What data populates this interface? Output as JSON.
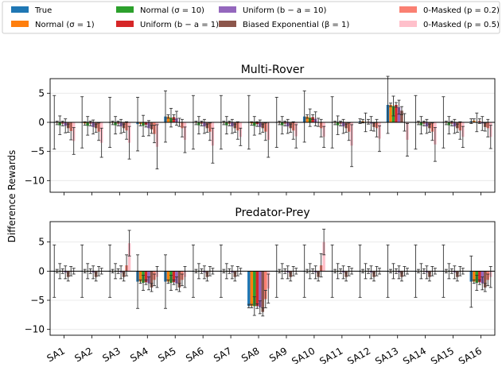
{
  "chart_data": [
    {
      "type": "bar",
      "title": "Multi-Rover",
      "ylabel": "Difference Rewards",
      "ylim": [
        -12,
        7.5
      ],
      "yticks": [
        5,
        0,
        -5,
        -10
      ],
      "categories": [
        "SA1",
        "SA2",
        "SA3",
        "SA4",
        "SA5",
        "SA6",
        "SA7",
        "SA8",
        "SA9",
        "SA10",
        "SA11",
        "SA12",
        "SA13",
        "SA14",
        "SA15",
        "SA16"
      ],
      "series": [
        {
          "name": "True",
          "color": "#1f77b4",
          "values": [
            0.0,
            0.0,
            0.0,
            -0.3,
            1.0,
            0.0,
            0.0,
            0.0,
            0.0,
            1.0,
            0.0,
            0.2,
            3.0,
            0.0,
            0.0,
            0.2
          ],
          "err": [
            4.6,
            4.4,
            4.3,
            4.6,
            4.4,
            4.6,
            4.6,
            4.6,
            4.3,
            4.4,
            4.4,
            0.4,
            4.9,
            4.6,
            4.4,
            0.4
          ]
        },
        {
          "name": "Normal (σ=1)",
          "color": "#ff7f0e",
          "values": [
            -0.1,
            -0.2,
            -0.1,
            -0.3,
            1.0,
            -0.1,
            -0.1,
            -0.2,
            -0.1,
            1.0,
            -0.1,
            0.2,
            3.0,
            -0.1,
            -0.1,
            0.3
          ],
          "err": [
            0.3,
            0.3,
            0.3,
            0.3,
            0.3,
            0.3,
            0.3,
            0.3,
            0.3,
            0.3,
            0.3,
            0.3,
            0.3,
            0.3,
            0.3,
            0.3
          ]
        },
        {
          "name": "Normal (σ=10)",
          "color": "#2ca02c",
          "values": [
            -0.5,
            -0.6,
            -0.5,
            -0.6,
            0.8,
            -0.5,
            -0.5,
            -0.6,
            -0.5,
            0.8,
            -0.5,
            0.0,
            2.8,
            -0.5,
            -0.5,
            0.0
          ],
          "err": [
            1.6,
            1.6,
            1.5,
            1.8,
            1.6,
            1.5,
            1.5,
            1.6,
            1.5,
            1.5,
            1.6,
            1.6,
            1.7,
            1.5,
            1.5,
            1.6
          ]
        },
        {
          "name": "Uniform (b−a=1)",
          "color": "#d62728",
          "values": [
            -0.2,
            -0.2,
            -0.2,
            -0.4,
            0.9,
            -0.2,
            -0.2,
            -0.3,
            -0.2,
            0.9,
            -0.2,
            0.1,
            3.0,
            -0.2,
            -0.2,
            0.2
          ],
          "err": [
            0.4,
            0.4,
            0.4,
            0.4,
            0.4,
            0.4,
            0.4,
            0.4,
            0.4,
            0.4,
            0.4,
            0.4,
            0.4,
            0.4,
            0.4,
            0.4
          ]
        },
        {
          "name": "Uniform (b−a=10)",
          "color": "#9467bd",
          "values": [
            -0.6,
            -0.8,
            -0.7,
            -1.0,
            0.7,
            -0.7,
            -0.7,
            -0.8,
            -0.7,
            0.6,
            -0.7,
            -0.2,
            2.6,
            -0.7,
            -0.7,
            -0.2
          ],
          "err": [
            1.2,
            1.2,
            1.2,
            1.3,
            1.2,
            1.2,
            1.2,
            1.2,
            1.2,
            1.2,
            1.2,
            1.2,
            1.2,
            1.2,
            1.2,
            1.2
          ]
        },
        {
          "name": "Biased Exponential (β=1)",
          "color": "#8c564b",
          "values": [
            -1.0,
            -1.0,
            -1.0,
            -1.2,
            0.0,
            -1.0,
            -1.0,
            -1.0,
            -1.0,
            0.0,
            -1.0,
            -0.8,
            2.0,
            -1.0,
            -1.0,
            -0.8
          ],
          "err": [
            0.7,
            0.7,
            0.7,
            0.7,
            0.7,
            0.7,
            0.7,
            0.7,
            0.7,
            0.7,
            0.7,
            0.7,
            0.7,
            0.7,
            0.7,
            0.7
          ]
        },
        {
          "name": "0-Masked (p=0.2)",
          "color": "#fa8072",
          "values": [
            -1.5,
            -1.6,
            -1.4,
            -2.0,
            -1.0,
            -1.6,
            -1.4,
            -1.6,
            -1.4,
            -1.0,
            -1.6,
            -1.0,
            0.0,
            -1.6,
            -1.4,
            -1.0
          ],
          "err": [
            1.5,
            1.5,
            1.5,
            1.5,
            1.5,
            1.5,
            1.5,
            1.5,
            1.5,
            1.5,
            1.5,
            1.5,
            1.5,
            1.5,
            1.5,
            1.5
          ]
        },
        {
          "name": "0-Masked (p=0.5)",
          "color": "#ffc0cb",
          "values": [
            -3.2,
            -3.5,
            -3.5,
            -4.2,
            -3.0,
            -4.0,
            -2.5,
            -3.0,
            -2.4,
            -2.5,
            -4.0,
            -2.8,
            -3.0,
            -3.8,
            -2.5,
            -2.5
          ],
          "err": [
            2.3,
            2.5,
            2.8,
            3.8,
            2.2,
            3.0,
            1.5,
            3.0,
            2.0,
            1.8,
            3.6,
            2.2,
            2.8,
            2.9,
            1.8,
            2.0
          ]
        }
      ]
    },
    {
      "type": "bar",
      "title": "Predator-Prey",
      "ylabel": "Difference Rewards",
      "ylim": [
        -11,
        8.5
      ],
      "yticks": [
        5,
        0,
        -5,
        -10
      ],
      "categories": [
        "SA1",
        "SA2",
        "SA3",
        "SA4",
        "SA5",
        "SA6",
        "SA7",
        "SA8",
        "SA9",
        "SA10",
        "SA11",
        "SA12",
        "SA13",
        "SA14",
        "SA15",
        "SA16"
      ],
      "series": [
        {
          "name": "True",
          "color": "#1f77b4",
          "values": [
            0.0,
            0.0,
            0.0,
            -1.8,
            -1.8,
            0.0,
            0.0,
            -6.0,
            0.0,
            0.0,
            0.0,
            0.0,
            0.0,
            0.0,
            0.0,
            -1.8
          ],
          "err": [
            4.5,
            4.5,
            4.5,
            4.6,
            4.6,
            4.5,
            4.5,
            0.3,
            4.5,
            4.5,
            4.5,
            4.5,
            4.5,
            4.5,
            4.5,
            4.4
          ]
        },
        {
          "name": "Normal (σ=1)",
          "color": "#ff7f0e",
          "values": [
            0.0,
            0.0,
            0.0,
            -1.8,
            -1.8,
            0.0,
            0.0,
            -6.0,
            0.0,
            0.0,
            0.0,
            0.0,
            0.0,
            0.0,
            0.0,
            -1.8
          ],
          "err": [
            0.3,
            0.3,
            0.3,
            0.3,
            0.3,
            0.3,
            0.3,
            0.3,
            0.3,
            0.3,
            0.3,
            0.3,
            0.3,
            0.3,
            0.3,
            0.3
          ]
        },
        {
          "name": "Normal (σ=10)",
          "color": "#2ca02c",
          "values": [
            0.0,
            0.0,
            0.0,
            -2.0,
            -2.0,
            0.0,
            0.0,
            -6.0,
            0.0,
            0.0,
            0.0,
            0.0,
            0.0,
            0.0,
            0.0,
            -2.0
          ],
          "err": [
            1.3,
            1.3,
            1.3,
            1.3,
            1.3,
            1.3,
            1.3,
            1.6,
            1.3,
            1.3,
            1.3,
            1.3,
            1.3,
            1.3,
            1.3,
            1.3
          ]
        },
        {
          "name": "Uniform (b−a=1)",
          "color": "#d62728",
          "values": [
            0.0,
            0.0,
            0.0,
            -1.9,
            -1.9,
            0.0,
            0.0,
            -6.0,
            0.0,
            0.0,
            0.0,
            0.0,
            0.0,
            0.0,
            0.0,
            -1.9
          ],
          "err": [
            0.4,
            0.4,
            0.4,
            0.4,
            0.4,
            0.4,
            0.4,
            0.4,
            0.4,
            0.4,
            0.4,
            0.4,
            0.4,
            0.4,
            0.4,
            0.4
          ]
        },
        {
          "name": "Uniform (b−a=10)",
          "color": "#9467bd",
          "values": [
            -0.2,
            -0.2,
            -0.2,
            -2.1,
            -2.1,
            -0.2,
            -0.2,
            -6.2,
            -0.2,
            -0.2,
            -0.2,
            -0.2,
            -0.2,
            -0.2,
            -0.2,
            -2.1
          ],
          "err": [
            1.1,
            1.1,
            1.1,
            1.1,
            1.1,
            1.1,
            1.1,
            1.1,
            1.1,
            1.1,
            1.1,
            1.1,
            1.1,
            1.1,
            1.1,
            1.1
          ]
        },
        {
          "name": "Biased Exponential (β=1)",
          "color": "#8c564b",
          "values": [
            -1.0,
            -1.0,
            -1.0,
            -2.8,
            -2.8,
            -1.0,
            -1.0,
            -7.0,
            -1.0,
            -1.0,
            -1.0,
            -1.0,
            -1.0,
            -1.0,
            -1.0,
            -2.8
          ],
          "err": [
            0.7,
            0.7,
            0.7,
            0.7,
            0.7,
            0.7,
            0.7,
            0.7,
            0.7,
            0.7,
            0.7,
            0.7,
            0.7,
            0.7,
            0.7,
            0.7
          ]
        },
        {
          "name": "0-Masked (p=0.2)",
          "color": "#fa8072",
          "values": [
            0.0,
            0.0,
            1.0,
            -1.5,
            -1.5,
            0.0,
            0.0,
            -4.8,
            0.0,
            1.0,
            0.0,
            0.0,
            0.0,
            0.0,
            0.0,
            -1.5
          ],
          "err": [
            0.8,
            0.8,
            1.8,
            1.0,
            1.0,
            0.8,
            0.8,
            1.5,
            0.8,
            2.0,
            0.8,
            0.8,
            0.8,
            0.8,
            0.8,
            1.0
          ]
        },
        {
          "name": "0-Masked (p=0.5)",
          "color": "#ffc0cb",
          "values": [
            0.0,
            0.0,
            4.8,
            -1.0,
            -1.0,
            0.0,
            0.0,
            -3.0,
            0.0,
            5.0,
            0.0,
            0.0,
            0.0,
            0.0,
            0.0,
            -1.0
          ],
          "err": [
            0.5,
            0.5,
            2.2,
            1.8,
            1.8,
            0.5,
            0.5,
            2.5,
            0.5,
            2.2,
            0.5,
            0.5,
            0.5,
            0.5,
            0.5,
            1.8
          ]
        }
      ]
    }
  ],
  "legend": {
    "columns": [
      [
        {
          "label": "True",
          "color": "#1f77b4"
        },
        {
          "label": "Normal (σ = 1)",
          "color": "#ff7f0e"
        }
      ],
      [
        {
          "label": "Normal (σ = 10)",
          "color": "#2ca02c"
        },
        {
          "label": "Uniform (b − a = 1)",
          "color": "#d62728"
        }
      ],
      [
        {
          "label": "Uniform (b − a = 10)",
          "color": "#9467bd"
        },
        {
          "label": "Biased Exponential (β = 1)",
          "color": "#8c564b"
        }
      ],
      [
        {
          "label": "0-Masked (p = 0.2)",
          "color": "#fa8072"
        },
        {
          "label": "0-Masked (p = 0.5)",
          "color": "#ffc0cb"
        }
      ]
    ]
  },
  "shared_ylabel": "Difference Rewards"
}
